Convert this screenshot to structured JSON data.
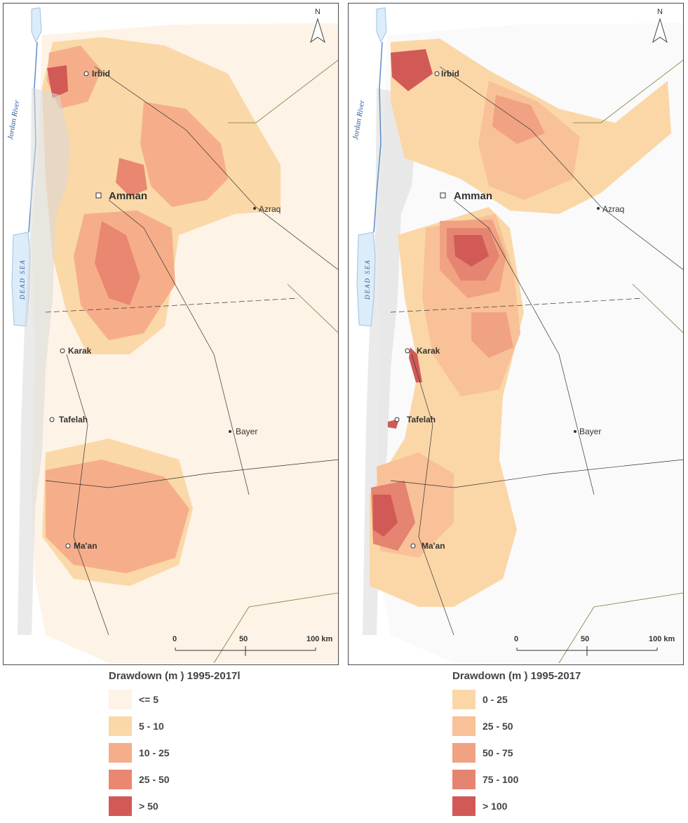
{
  "maps": [
    {
      "cities": {
        "irbid": "Irbid",
        "amman": "Amman",
        "azraq": "Azraq",
        "karak": "Karak",
        "tafelah": "Tafelah",
        "bayer": "Bayer",
        "maan": "Ma'an"
      },
      "features": {
        "jordan_river": "Jordan River",
        "dead_sea": "DEAD SEA"
      },
      "north_arrow": "N",
      "scale": {
        "zero": "0",
        "mid": "50",
        "end": "100 km"
      },
      "legend": {
        "title": "Drawdown (m ) 1995-2017l",
        "classes": [
          {
            "label": "<= 5",
            "color": "#fdf3e6"
          },
          {
            "label": "5 - 10",
            "color": "#fad8a8"
          },
          {
            "label": "10 - 25",
            "color": "#f6ae8a"
          },
          {
            "label": "25 - 50",
            "color": "#e98770"
          },
          {
            "label": "> 50",
            "color": "#d15a57"
          }
        ]
      }
    },
    {
      "cities": {
        "irbid": "Irbid",
        "amman": "Amman",
        "azraq": "Azraq",
        "karak": "Karak",
        "tafelah": "Tafelah",
        "bayer": "Bayer",
        "maan": "Ma'an"
      },
      "features": {
        "jordan_river": "Jordan River",
        "dead_sea": "DEAD SEA"
      },
      "north_arrow": "N",
      "scale": {
        "zero": "0",
        "mid": "50",
        "end": "100 km"
      },
      "legend": {
        "title": "Drawdown (m ) 1995-2017",
        "classes": [
          {
            "label": "0 - 25",
            "color": "#fbd7a8"
          },
          {
            "label": "25 - 50",
            "color": "#f8c197"
          },
          {
            "label": "50 - 75",
            "color": "#f1a283"
          },
          {
            "label": "75 - 100",
            "color": "#e58470"
          },
          {
            "label": "> 100",
            "color": "#d15a57"
          }
        ]
      }
    }
  ]
}
